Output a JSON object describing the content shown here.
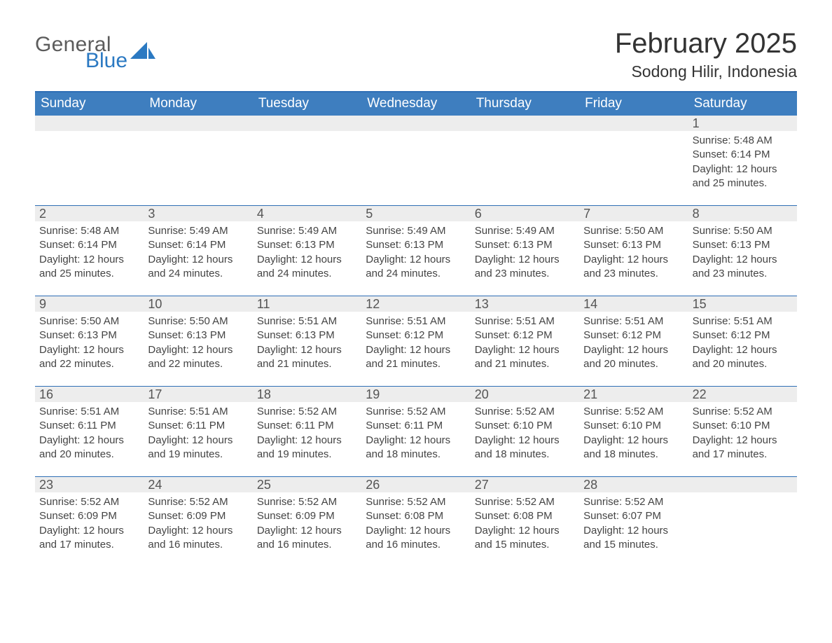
{
  "logo": {
    "line1": "General",
    "line2": "Blue",
    "line1_color": "#5c5c5c",
    "line2_color": "#2b79c2",
    "sail_color": "#2b79c2"
  },
  "title": {
    "month": "February 2025",
    "location": "Sodong Hilir, Indonesia"
  },
  "style": {
    "header_bg": "#3e7ebf",
    "divider": "#2e6eb5",
    "cell_header_bg": "#ededed",
    "page_bg": "#ffffff",
    "text_color": "#2e2e2e",
    "body_text_color": "#444444",
    "weekday_text_color": "#ffffff",
    "month_title_fontsize": 40,
    "location_fontsize": 23,
    "weekday_fontsize": 19,
    "daynum_fontsize": 18,
    "body_fontsize": 15
  },
  "weekdays": [
    "Sunday",
    "Monday",
    "Tuesday",
    "Wednesday",
    "Thursday",
    "Friday",
    "Saturday"
  ],
  "grid": {
    "columns": 7,
    "rows": 5,
    "start_day_index": 6,
    "days_in_month": 28
  },
  "days": [
    {
      "n": 1,
      "sunrise": "5:48 AM",
      "sunset": "6:14 PM",
      "daylight": "12 hours and 25 minutes."
    },
    {
      "n": 2,
      "sunrise": "5:48 AM",
      "sunset": "6:14 PM",
      "daylight": "12 hours and 25 minutes."
    },
    {
      "n": 3,
      "sunrise": "5:49 AM",
      "sunset": "6:14 PM",
      "daylight": "12 hours and 24 minutes."
    },
    {
      "n": 4,
      "sunrise": "5:49 AM",
      "sunset": "6:13 PM",
      "daylight": "12 hours and 24 minutes."
    },
    {
      "n": 5,
      "sunrise": "5:49 AM",
      "sunset": "6:13 PM",
      "daylight": "12 hours and 24 minutes."
    },
    {
      "n": 6,
      "sunrise": "5:49 AM",
      "sunset": "6:13 PM",
      "daylight": "12 hours and 23 minutes."
    },
    {
      "n": 7,
      "sunrise": "5:50 AM",
      "sunset": "6:13 PM",
      "daylight": "12 hours and 23 minutes."
    },
    {
      "n": 8,
      "sunrise": "5:50 AM",
      "sunset": "6:13 PM",
      "daylight": "12 hours and 23 minutes."
    },
    {
      "n": 9,
      "sunrise": "5:50 AM",
      "sunset": "6:13 PM",
      "daylight": "12 hours and 22 minutes."
    },
    {
      "n": 10,
      "sunrise": "5:50 AM",
      "sunset": "6:13 PM",
      "daylight": "12 hours and 22 minutes."
    },
    {
      "n": 11,
      "sunrise": "5:51 AM",
      "sunset": "6:13 PM",
      "daylight": "12 hours and 21 minutes."
    },
    {
      "n": 12,
      "sunrise": "5:51 AM",
      "sunset": "6:12 PM",
      "daylight": "12 hours and 21 minutes."
    },
    {
      "n": 13,
      "sunrise": "5:51 AM",
      "sunset": "6:12 PM",
      "daylight": "12 hours and 21 minutes."
    },
    {
      "n": 14,
      "sunrise": "5:51 AM",
      "sunset": "6:12 PM",
      "daylight": "12 hours and 20 minutes."
    },
    {
      "n": 15,
      "sunrise": "5:51 AM",
      "sunset": "6:12 PM",
      "daylight": "12 hours and 20 minutes."
    },
    {
      "n": 16,
      "sunrise": "5:51 AM",
      "sunset": "6:11 PM",
      "daylight": "12 hours and 20 minutes."
    },
    {
      "n": 17,
      "sunrise": "5:51 AM",
      "sunset": "6:11 PM",
      "daylight": "12 hours and 19 minutes."
    },
    {
      "n": 18,
      "sunrise": "5:52 AM",
      "sunset": "6:11 PM",
      "daylight": "12 hours and 19 minutes."
    },
    {
      "n": 19,
      "sunrise": "5:52 AM",
      "sunset": "6:11 PM",
      "daylight": "12 hours and 18 minutes."
    },
    {
      "n": 20,
      "sunrise": "5:52 AM",
      "sunset": "6:10 PM",
      "daylight": "12 hours and 18 minutes."
    },
    {
      "n": 21,
      "sunrise": "5:52 AM",
      "sunset": "6:10 PM",
      "daylight": "12 hours and 18 minutes."
    },
    {
      "n": 22,
      "sunrise": "5:52 AM",
      "sunset": "6:10 PM",
      "daylight": "12 hours and 17 minutes."
    },
    {
      "n": 23,
      "sunrise": "5:52 AM",
      "sunset": "6:09 PM",
      "daylight": "12 hours and 17 minutes."
    },
    {
      "n": 24,
      "sunrise": "5:52 AM",
      "sunset": "6:09 PM",
      "daylight": "12 hours and 16 minutes."
    },
    {
      "n": 25,
      "sunrise": "5:52 AM",
      "sunset": "6:09 PM",
      "daylight": "12 hours and 16 minutes."
    },
    {
      "n": 26,
      "sunrise": "5:52 AM",
      "sunset": "6:08 PM",
      "daylight": "12 hours and 16 minutes."
    },
    {
      "n": 27,
      "sunrise": "5:52 AM",
      "sunset": "6:08 PM",
      "daylight": "12 hours and 15 minutes."
    },
    {
      "n": 28,
      "sunrise": "5:52 AM",
      "sunset": "6:07 PM",
      "daylight": "12 hours and 15 minutes."
    }
  ],
  "labels": {
    "sunrise": "Sunrise:",
    "sunset": "Sunset:",
    "daylight": "Daylight:"
  }
}
